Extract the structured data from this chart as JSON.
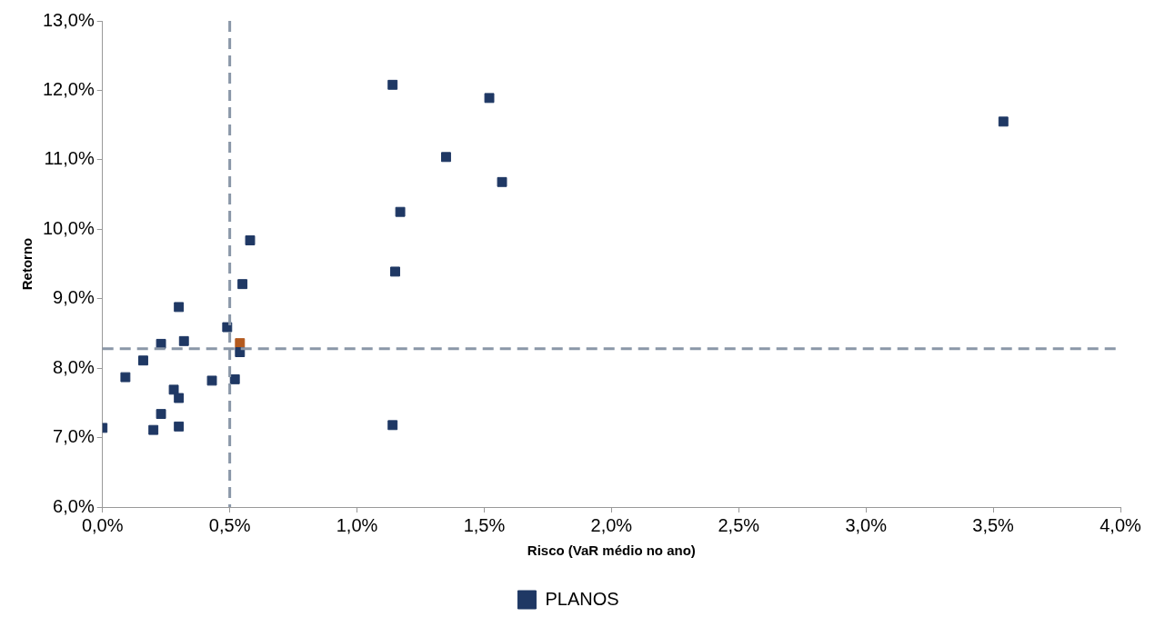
{
  "chart_data": {
    "type": "scatter",
    "xlabel": "Risco (VaR médio no ano)",
    "ylabel": "Retorno",
    "xlim": [
      0,
      4
    ],
    "ylim": [
      6,
      13
    ],
    "xticks": [
      {
        "value": 0,
        "label": "0,0%"
      },
      {
        "value": 0.5,
        "label": "0,5%"
      },
      {
        "value": 1,
        "label": "1,0%"
      },
      {
        "value": 1.5,
        "label": "1,5%"
      },
      {
        "value": 2,
        "label": "2,0%"
      },
      {
        "value": 2.5,
        "label": "2,5%"
      },
      {
        "value": 3,
        "label": "3,0%"
      },
      {
        "value": 3.5,
        "label": "3,5%"
      },
      {
        "value": 4,
        "label": "4,0%"
      }
    ],
    "yticks": [
      {
        "value": 6,
        "label": "6,0%"
      },
      {
        "value": 7,
        "label": "7,0%"
      },
      {
        "value": 8,
        "label": "8,0%"
      },
      {
        "value": 9,
        "label": "9,0%"
      },
      {
        "value": 10,
        "label": "10,0%"
      },
      {
        "value": 11,
        "label": "11,0%"
      },
      {
        "value": 12,
        "label": "12,0%"
      },
      {
        "value": 13,
        "label": "13,0%"
      }
    ],
    "grid": false,
    "legend": "bottom",
    "marker": "square",
    "ref_lines": [
      {
        "axis": "x",
        "value": 0.5,
        "color": "#8a97a8",
        "line_style": "dashed"
      },
      {
        "axis": "y",
        "value": 8.28,
        "color": "#8a97a8",
        "line_style": "dashed"
      }
    ],
    "series": [
      {
        "name": "PLANOS",
        "color": "#1f3864",
        "x": [
          0,
          0.09,
          0.16,
          0.2,
          0.23,
          0.23,
          0.28,
          0.3,
          0.3,
          0.3,
          0.32,
          0.43,
          0.49,
          0.54,
          0.52,
          0.55,
          0.58,
          1.14,
          1.15,
          1.14,
          1.17,
          1.35,
          1.52,
          1.57,
          3.54
        ],
        "values": [
          7.14,
          7.87,
          8.11,
          7.11,
          8.35,
          7.34,
          7.69,
          7.57,
          7.16,
          8.88,
          8.39,
          7.82,
          8.59,
          8.23,
          7.84,
          9.21,
          9.84,
          12.08,
          9.39,
          7.18,
          10.25,
          11.04,
          11.89,
          10.68,
          11.55
        ]
      },
      {
        "color": "#b35a1f",
        "x": [
          0.54
        ],
        "values": [
          8.36
        ]
      }
    ]
  }
}
